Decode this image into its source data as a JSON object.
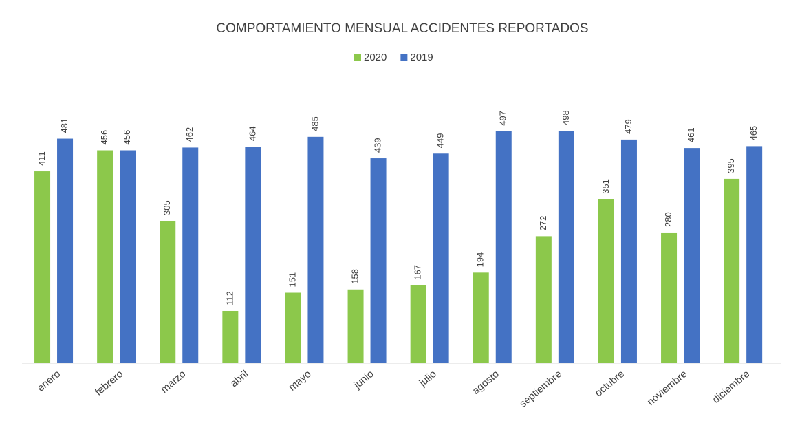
{
  "chart_data": {
    "type": "bar",
    "title": "COMPORTAMIENTO MENSUAL ACCIDENTES REPORTADOS",
    "categories": [
      "enero",
      "febrero",
      "marzo",
      "abril",
      "mayo",
      "junio",
      "julio",
      "agosto",
      "septiembre",
      "octubre",
      "noviembre",
      "diciembre"
    ],
    "series": [
      {
        "name": "2020",
        "color": "#8cc84b",
        "values": [
          411,
          456,
          305,
          112,
          151,
          158,
          167,
          194,
          272,
          351,
          280,
          395
        ]
      },
      {
        "name": "2019",
        "color": "#4472c4",
        "values": [
          481,
          456,
          462,
          464,
          485,
          439,
          449,
          497,
          498,
          479,
          461,
          465
        ]
      }
    ],
    "legend": "top"
  }
}
